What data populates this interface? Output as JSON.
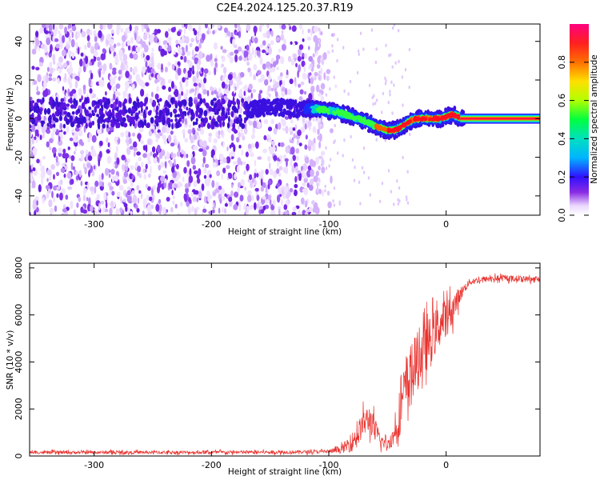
{
  "title": "C2E4.2024.125.20.37.R19",
  "chart_data": [
    {
      "type": "heatmap",
      "xlabel": "Height of straight line (km)",
      "ylabel": "Frequency (Hz)",
      "xlim": [
        -355,
        80
      ],
      "ylim": [
        -50,
        49
      ],
      "xticks": [
        -300,
        -200,
        -100,
        0
      ],
      "yticks": [
        -40,
        -20,
        0,
        20,
        40
      ],
      "colorbar": {
        "label": "Normalized spectral amplitude",
        "range": [
          0,
          1
        ],
        "ticks": [
          "0.0",
          "0.2",
          "0.4",
          "0.6",
          "0.8"
        ],
        "tick_values": [
          0,
          0.2,
          0.4,
          0.6,
          0.8
        ]
      },
      "ridge": {
        "x": [
          -170,
          -150,
          -120,
          -110,
          -100,
          -90,
          -80,
          -70,
          -60,
          -55,
          -50,
          -45,
          -40,
          -35,
          -30,
          -25,
          -20,
          -15,
          -10,
          -5,
          0,
          5,
          10,
          15,
          80
        ],
        "y": [
          5,
          6,
          5,
          5,
          4,
          3,
          1,
          -1,
          -4,
          -5,
          -6,
          -6,
          -5,
          -3,
          -1,
          0,
          0,
          0,
          0,
          0,
          1,
          2,
          1,
          0,
          0
        ]
      }
    },
    {
      "type": "line",
      "xlabel": "Height of straight line (km)",
      "ylabel": "SNR (10 * v/v)",
      "xlim": [
        -355,
        80
      ],
      "ylim": [
        0,
        8200
      ],
      "xticks": [
        -300,
        -200,
        -100,
        0
      ],
      "yticks": [
        0,
        2000,
        4000,
        6000,
        8000
      ],
      "series": [
        {
          "color": "#e8302c",
          "envelope": {
            "x": [
              -355,
              -150,
              -110,
              -100,
              -90,
              -80,
              -70,
              -65,
              -60,
              -55,
              -50,
              -45,
              -40,
              -35,
              -30,
              -25,
              -20,
              -15,
              -10,
              -5,
              0,
              5,
              10,
              15,
              20,
              30,
              40,
              60,
              80
            ],
            "mid": [
              150,
              160,
              180,
              200,
              260,
              600,
              1400,
              1600,
              1000,
              600,
              500,
              800,
              1800,
              2800,
              3500,
              4000,
              4400,
              4800,
              5200,
              5600,
              5900,
              6200,
              6700,
              7100,
              7400,
              7500,
              7550,
              7550,
              7500
            ],
            "amp": [
              90,
              100,
              100,
              120,
              200,
              600,
              800,
              900,
              700,
              400,
              300,
              600,
              1400,
              1800,
              1900,
              1800,
              1600,
              1500,
              1400,
              1300,
              1100,
              900,
              600,
              300,
              200,
              180,
              180,
              180,
              180
            ]
          }
        }
      ]
    }
  ]
}
